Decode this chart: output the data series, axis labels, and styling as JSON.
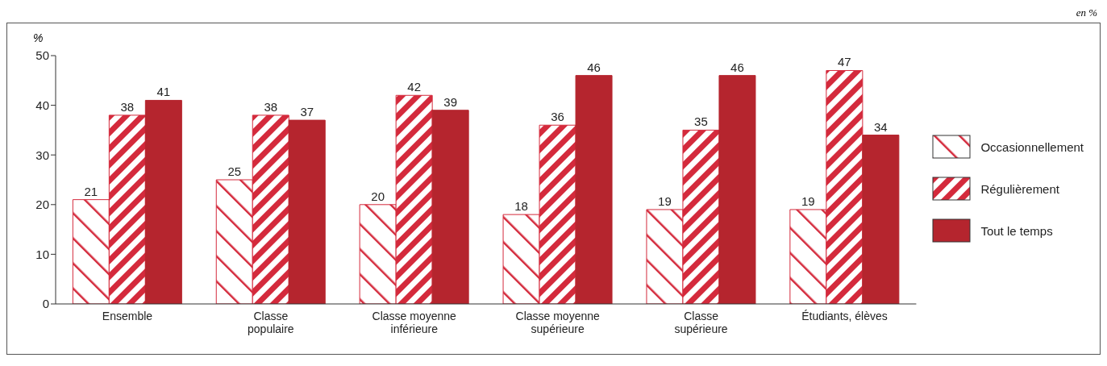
{
  "chart_data": {
    "type": "bar",
    "subtitle": "en %",
    "ylabel": "%",
    "categories": [
      "Ensemble",
      "Classe\npopulaire",
      "Classe moyenne\ninférieure",
      "Classe moyenne\nsupérieure",
      "Classe\nsupérieure",
      "Étudiants, élèves"
    ],
    "series": [
      {
        "name": "Occasionnellement",
        "color": "#d42a3c",
        "values": [
          21,
          25,
          20,
          18,
          19,
          19
        ]
      },
      {
        "name": "Régulièrement",
        "color": "#d42a3c",
        "values": [
          38,
          38,
          42,
          36,
          35,
          47
        ]
      },
      {
        "name": "Tout le temps",
        "color": "#b5252e",
        "values": [
          41,
          37,
          39,
          46,
          46,
          34
        ]
      }
    ],
    "ylim": [
      0,
      50
    ],
    "yticks": [
      0,
      10,
      20,
      30,
      40,
      50
    ],
    "legend": "right",
    "data_labels": true
  }
}
